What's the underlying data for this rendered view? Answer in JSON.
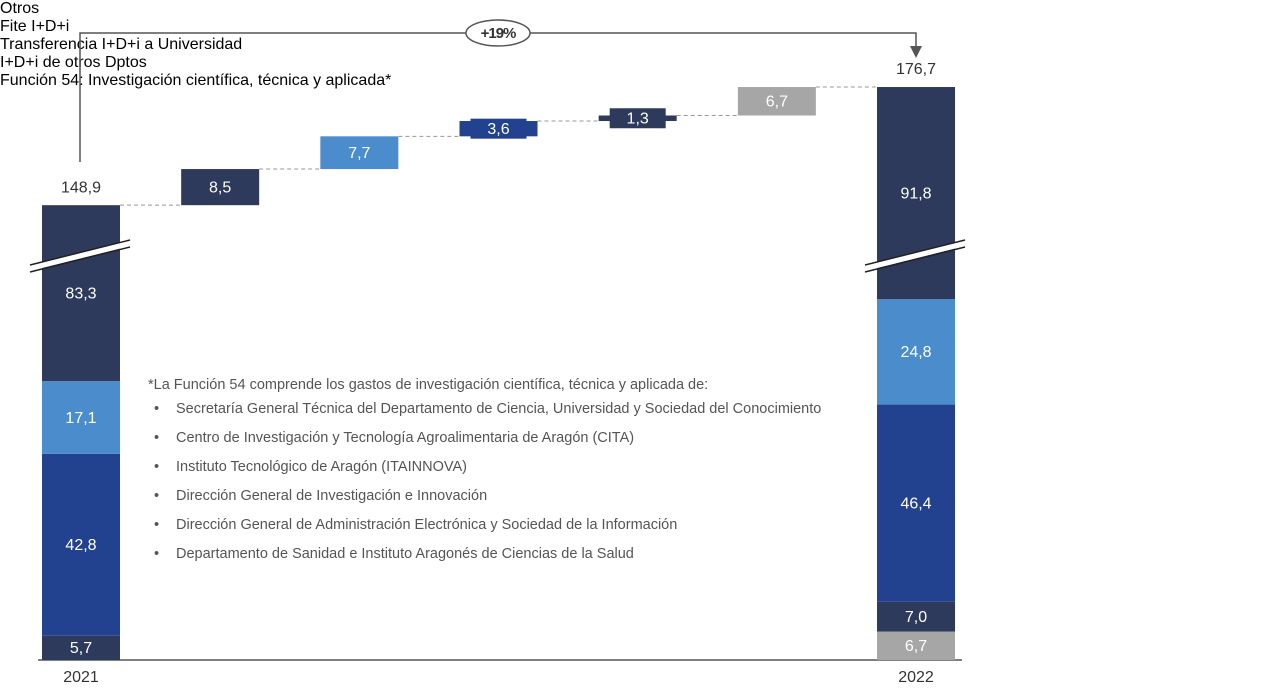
{
  "chart_data": {
    "type": "waterfall",
    "comparison_label": "+19%",
    "stacks": [
      {
        "category": "2021",
        "total": 148.9,
        "total_label": "148,9",
        "values": [
          5.7,
          42.8,
          17.1,
          83.3
        ],
        "value_labels": [
          "5,7",
          "42,8",
          "17,1",
          "83,3"
        ],
        "colors": [
          "#2e3a5c",
          "#22418f",
          "#4a8ccc",
          "#2e3a5c"
        ]
      },
      {
        "category": "2022",
        "total": 176.7,
        "total_label": "176,7",
        "values": [
          6.7,
          7.0,
          46.4,
          24.8,
          91.8
        ],
        "value_labels": [
          "6,7",
          "7,0",
          "46,4",
          "24,8",
          "91,8"
        ],
        "colors": [
          "#a6a6a6",
          "#2e3a5c",
          "#22418f",
          "#4a8ccc",
          "#2e3a5c"
        ],
        "names": [
          "Otros",
          "Fite I+D+i",
          "Transferencia I+D+i a Universidad",
          "I+D+i de otros Dptos",
          "Función 54: Investigación científica, técnica y aplicada*"
        ]
      }
    ],
    "steps": {
      "values": [
        8.5,
        7.7,
        3.6,
        1.3,
        6.7
      ],
      "value_labels": [
        "8,5",
        "7,7",
        "3,6",
        "1,3",
        "6,7"
      ],
      "colors": [
        "#2e3a5c",
        "#4a8ccc",
        "#22418f",
        "#2e3a5c",
        "#a6a6a6"
      ]
    },
    "note": {
      "title": "*La Función 54 comprende los gastos de investigación científica, técnica y aplicada de:",
      "items": [
        "Secretaría General Técnica del Departamento de Ciencia, Universidad y Sociedad del Conocimiento",
        "Centro de Investigación y Tecnología Agroalimentaria de Aragón (CITA)",
        "Instituto Tecnológico de Aragón (ITAINNOVA)",
        "Dirección General de Investigación e Innovación",
        "Dirección General de Administración Electrónica y Sociedad de la Información",
        "Departamento de Sanidad e Instituto Aragonés de Ciencias de la Salud"
      ]
    }
  }
}
